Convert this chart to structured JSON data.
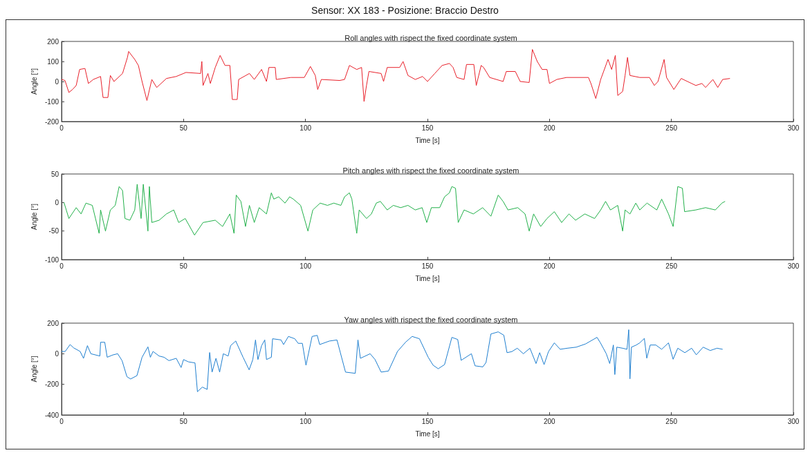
{
  "chart_data": [
    {
      "type": "line",
      "title": "Roll angles with rispect the fixed coordinate system",
      "xlabel": "Time [s]",
      "ylabel": "Angle [°]",
      "annotations": [
        "Sensor: XX 183 - Posizione: Braccio Destro"
      ],
      "xlim": [
        0,
        300
      ],
      "xticks": [
        0,
        50,
        100,
        150,
        200,
        250,
        300
      ],
      "ylim": [
        -200,
        200
      ],
      "yticks": [
        -200,
        -100,
        0,
        100,
        200
      ],
      "x": [
        0,
        1.4,
        3,
        4.5,
        6,
        7.4,
        9.6,
        11,
        13,
        16,
        17,
        19,
        20,
        21.5,
        25,
        27,
        27.5,
        30,
        31.5,
        33,
        35,
        37,
        39,
        43,
        47,
        51,
        57,
        57.5,
        58,
        60,
        61,
        63,
        65,
        67,
        69,
        70,
        72,
        72.6,
        77,
        79,
        82,
        84,
        85,
        87.6,
        88,
        94,
        99.5,
        102,
        104,
        105,
        106.5,
        114,
        116,
        118,
        121,
        123,
        124,
        125,
        126,
        131,
        132,
        133.5,
        138.6,
        140,
        142,
        145,
        148,
        150,
        153,
        156,
        159,
        160.5,
        162,
        165,
        166,
        169,
        170,
        172,
        173,
        175.5,
        181,
        182.3,
        186,
        188,
        191.7,
        193,
        195,
        197,
        199,
        200,
        203,
        207,
        216,
        217,
        219,
        221,
        224,
        225.5,
        227,
        228,
        230,
        231,
        232,
        233,
        237,
        241,
        243,
        244.5,
        247,
        248,
        251,
        254,
        260,
        262.5,
        264,
        267,
        269,
        271,
        274
      ],
      "series": [
        {
          "color": "#e8202a",
          "values": [
            10,
            5,
            -55,
            -40,
            -20,
            60,
            65,
            -10,
            10,
            25,
            -80,
            -80,
            30,
            0,
            40,
            120,
            150,
            110,
            80,
            0,
            -95,
            10,
            -30,
            15,
            25,
            45,
            40,
            100,
            -20,
            40,
            -10,
            70,
            130,
            80,
            80,
            -90,
            -90,
            10,
            40,
            10,
            60,
            0,
            70,
            70,
            10,
            20,
            20,
            75,
            30,
            -40,
            10,
            5,
            10,
            80,
            60,
            70,
            -100,
            -20,
            50,
            40,
            0,
            70,
            70,
            100,
            30,
            10,
            25,
            0,
            40,
            80,
            90,
            70,
            20,
            10,
            85,
            85,
            -20,
            80,
            70,
            20,
            0,
            50,
            50,
            0,
            -5,
            160,
            100,
            60,
            60,
            -10,
            10,
            20,
            20,
            -10,
            -85,
            10,
            110,
            60,
            130,
            -70,
            -50,
            30,
            120,
            30,
            20,
            20,
            -20,
            0,
            110,
            20,
            -40,
            15,
            -20,
            -10,
            -30,
            10,
            -30,
            10,
            15
          ]
        }
      ]
    },
    {
      "type": "line",
      "title": "Pitch angles with rispect the fixed coordinate system",
      "xlabel": "Time [s]",
      "ylabel": "Angle [°]",
      "xlim": [
        0,
        300
      ],
      "xticks": [
        0,
        50,
        100,
        150,
        200,
        250,
        300
      ],
      "ylim": [
        -100,
        50
      ],
      "yticks": [
        -100,
        -50,
        0,
        50
      ],
      "x": [
        1,
        3,
        6,
        8,
        10,
        12.6,
        15.4,
        16,
        18,
        20,
        22,
        23.6,
        25,
        26,
        28,
        30,
        31,
        32.6,
        33.5,
        35.4,
        36,
        37,
        40,
        43,
        46,
        48,
        50.7,
        54.5,
        58,
        63,
        66,
        69,
        70.7,
        71.6,
        73.5,
        75.4,
        77,
        79,
        81,
        84,
        86,
        87,
        89,
        91.6,
        93.5,
        95,
        98,
        101,
        103,
        106,
        109,
        111.6,
        114.5,
        116,
        118,
        119,
        121,
        122,
        125,
        127,
        129,
        130.7,
        133.5,
        136,
        139,
        142,
        145,
        147.8,
        149.7,
        151.6,
        155,
        157,
        159,
        160,
        161.5,
        162.6,
        165,
        168.8,
        172.6,
        176,
        179,
        181,
        183,
        187,
        190,
        191.7,
        193.5,
        196.4,
        199,
        202,
        205,
        208,
        210.7,
        214.5,
        218.5,
        221,
        223,
        225,
        228,
        230,
        231,
        233,
        235.4,
        237,
        240,
        244,
        246,
        248.8,
        250.7,
        252.6,
        254.5,
        255.4,
        260,
        264,
        268,
        270.7,
        272
      ],
      "series": [
        {
          "color": "#22b04a",
          "values": [
            0,
            -28,
            -9,
            -20,
            -1,
            -5,
            -54,
            -13,
            -50,
            -13,
            -5,
            28,
            21,
            -28,
            -31,
            -13,
            32,
            -28,
            32,
            -50,
            28,
            -35,
            -31,
            -20,
            -13,
            -35,
            -28,
            -57,
            -35,
            -31,
            -42,
            -20,
            -54,
            13,
            2,
            -42,
            -5,
            -35,
            -9,
            -20,
            17,
            6,
            10,
            -1,
            10,
            6,
            -5,
            -50,
            -13,
            -1,
            -5,
            -1,
            -5,
            10,
            17,
            6,
            -54,
            -13,
            -28,
            -20,
            -1,
            2,
            -13,
            -5,
            -9,
            -5,
            -13,
            -9,
            -35,
            -9,
            -9,
            10,
            17,
            28,
            25,
            -35,
            -13,
            -20,
            -9,
            -24,
            13,
            2,
            -13,
            -9,
            -20,
            -50,
            -20,
            -42,
            -28,
            -16,
            -35,
            -20,
            -31,
            -20,
            -28,
            -13,
            2,
            -13,
            -5,
            -50,
            -13,
            -20,
            -1,
            -13,
            -1,
            -13,
            6,
            -20,
            -42,
            28,
            25,
            -16,
            -13,
            -9,
            -13,
            -1,
            2
          ]
        }
      ]
    },
    {
      "type": "line",
      "title": "Yaw angles with rispect the fixed coordinate system",
      "xlabel": "Time [s]",
      "ylabel": "Angle [°]",
      "xlim": [
        0,
        300
      ],
      "xticks": [
        0,
        50,
        100,
        150,
        200,
        250,
        300
      ],
      "ylim": [
        -400,
        200
      ],
      "yticks": [
        -400,
        -200,
        0,
        200
      ],
      "x": [
        0,
        1.5,
        3.5,
        5,
        7.6,
        9,
        10.6,
        12,
        15.7,
        16,
        17.7,
        18.7,
        21,
        23,
        24.8,
        26.8,
        28.3,
        30.9,
        33,
        35.4,
        36.4,
        37.5,
        40,
        42,
        44,
        47,
        49,
        50,
        52,
        54.7,
        55.7,
        57.7,
        59.7,
        60.7,
        61.7,
        63.3,
        64.8,
        66.3,
        68.3,
        69.3,
        71.4,
        74.4,
        76.9,
        78.4,
        79.5,
        80.5,
        82,
        83.3,
        84,
        86,
        86.5,
        90,
        91,
        93,
        95.6,
        97,
        98.7,
        100.2,
        102.7,
        104.8,
        105.8,
        109.8,
        112.9,
        116.4,
        120.4,
        121.5,
        122.5,
        126.5,
        128.5,
        131,
        134,
        137.7,
        141,
        143.7,
        146.7,
        150.3,
        152.3,
        154.4,
        157,
        160,
        162.4,
        163.8,
        168,
        169.5,
        172.7,
        174,
        176,
        179,
        181.3,
        182.6,
        184.6,
        186.8,
        189.3,
        192,
        194.5,
        196,
        197.8,
        199.6,
        202,
        204.4,
        207.3,
        211,
        214.8,
        219.5,
        220.9,
        223.3,
        224.7,
        226.2,
        226.8,
        227.6,
        230,
        231.8,
        232.5,
        233,
        233.6,
        235.6,
        237,
        238.9,
        239.9,
        241.3,
        243.6,
        246,
        248.8,
        250.7,
        252.6,
        255.5,
        258.3,
        260.2,
        263,
        265.9,
        268.7,
        271
      ],
      "series": [
        {
          "color": "#1f7fcf",
          "values": [
            15,
            15,
            60,
            38,
            15,
            -30,
            53,
            0,
            -15,
            75,
            75,
            -23,
            -8,
            0,
            -45,
            -150,
            -165,
            -143,
            -23,
            45,
            -23,
            15,
            -15,
            -23,
            -45,
            -30,
            -90,
            -38,
            -53,
            -60,
            -248,
            -218,
            -233,
            8,
            -120,
            -30,
            -120,
            0,
            -15,
            53,
            83,
            -23,
            -105,
            -38,
            90,
            -38,
            53,
            90,
            -38,
            -23,
            98,
            90,
            60,
            113,
            98,
            68,
            68,
            -75,
            113,
            120,
            60,
            83,
            90,
            -120,
            -128,
            90,
            -30,
            0,
            -38,
            -120,
            -113,
            15,
            75,
            113,
            98,
            -23,
            -75,
            -98,
            -71,
            107,
            93,
            -43,
            0,
            -79,
            -86,
            -57,
            129,
            143,
            121,
            7,
            14,
            36,
            0,
            36,
            -64,
            7,
            -71,
            14,
            71,
            29,
            36,
            43,
            64,
            107,
            71,
            0,
            -64,
            57,
            -136,
            43,
            36,
            29,
            157,
            -164,
            43,
            57,
            71,
            100,
            -29,
            57,
            57,
            29,
            71,
            -36,
            36,
            7,
            36,
            -7,
            43,
            21,
            36,
            29
          ]
        }
      ]
    }
  ]
}
